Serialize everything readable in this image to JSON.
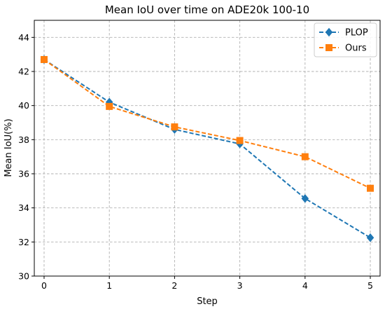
{
  "chart_data": {
    "type": "line",
    "title": "Mean IoU over time on ADE20k 100-10",
    "xlabel": "Step",
    "ylabel": "Mean IoU(%)",
    "x": [
      0,
      1,
      2,
      3,
      4,
      5
    ],
    "xlim": [
      -0.15,
      5.15
    ],
    "ylim": [
      30,
      45
    ],
    "yticks": [
      30,
      32,
      34,
      36,
      38,
      40,
      42,
      44
    ],
    "xticks": [
      0,
      1,
      2,
      3,
      4,
      5
    ],
    "grid": true,
    "legend_position": "top-right",
    "series": [
      {
        "name": "PLOP",
        "values": [
          42.7,
          40.2,
          38.6,
          37.75,
          34.55,
          32.25
        ],
        "color": "#1f77b4",
        "marker": "diamond"
      },
      {
        "name": "Ours",
        "values": [
          42.7,
          39.95,
          38.75,
          37.95,
          37.0,
          35.15
        ],
        "color": "#ff7f0e",
        "marker": "square"
      }
    ]
  }
}
